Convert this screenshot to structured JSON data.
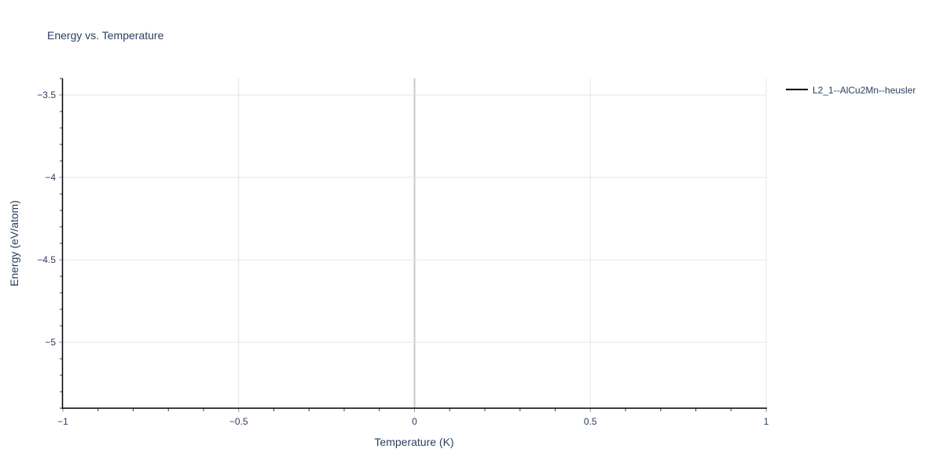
{
  "chart_data": {
    "type": "line",
    "title": "Energy vs. Temperature",
    "xlabel": "Temperature (K)",
    "ylabel": "Energy (eV/atom)",
    "xlim": [
      -1,
      1
    ],
    "ylim": [
      -5.4,
      -3.4
    ],
    "xticks": [
      -1,
      -0.5,
      0,
      0.5,
      1
    ],
    "xtick_labels": [
      "−1",
      "−0.5",
      "0",
      "0.5",
      "1"
    ],
    "yticks": [
      -3.5,
      -4,
      -4.5,
      -5
    ],
    "ytick_labels": [
      "−3.5",
      "−4",
      "−4.5",
      "−5"
    ],
    "grid": true,
    "legend_position": "top-right",
    "series": [
      {
        "name": "L2_1--AlCu2Mn--heusler",
        "color": "#000000",
        "x": [],
        "y": []
      }
    ]
  }
}
